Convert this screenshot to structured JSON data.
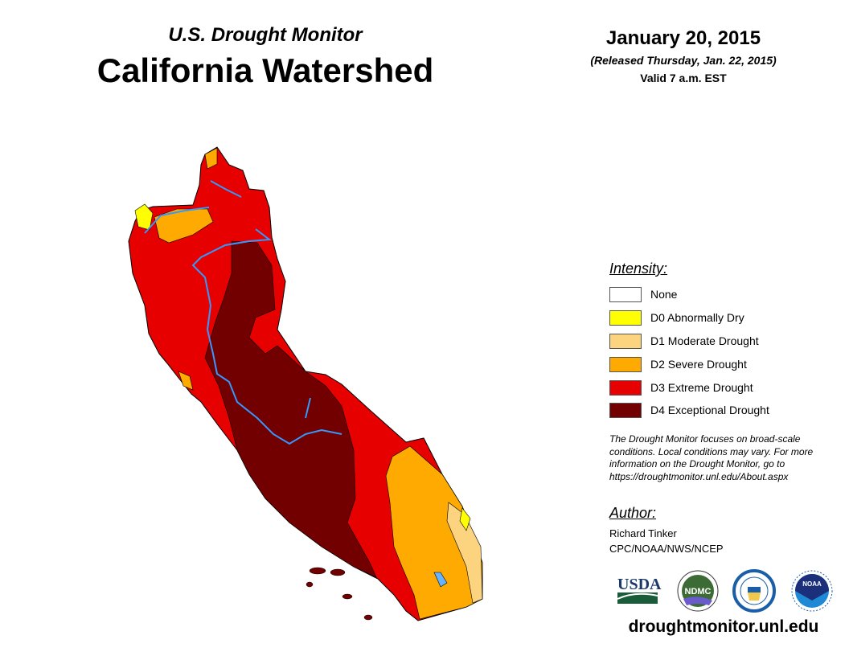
{
  "header": {
    "super_title": "U.S. Drought Monitor",
    "title": "California Watershed",
    "date": "January 20, 2015",
    "released": "(Released Thursday, Jan. 22, 2015)",
    "valid": "Valid 7 a.m. EST"
  },
  "legend": {
    "heading": "Intensity:",
    "items": [
      {
        "label": "None",
        "color": "#ffffff"
      },
      {
        "label": "D0 Abnormally Dry",
        "color": "#ffff00"
      },
      {
        "label": "D1 Moderate Drought",
        "color": "#fcd37f"
      },
      {
        "label": "D2 Severe Drought",
        "color": "#ffaa00"
      },
      {
        "label": "D3 Extreme Drought",
        "color": "#e60000"
      },
      {
        "label": "D4 Exceptional Drought",
        "color": "#730000"
      }
    ]
  },
  "note": "The Drought Monitor focuses on broad-scale conditions. Local conditions may vary. For more information on the Drought Monitor, go to https://droughtmonitor.unl.edu/About.aspx",
  "author": {
    "heading": "Author:",
    "name": "Richard Tinker",
    "org": "CPC/NOAA/NWS/NCEP"
  },
  "logos": [
    "USDA",
    "NDMC",
    "Dept. of Commerce",
    "NOAA"
  ],
  "website": "droughtmonitor.unl.edu",
  "river_color": "#3399ff"
}
